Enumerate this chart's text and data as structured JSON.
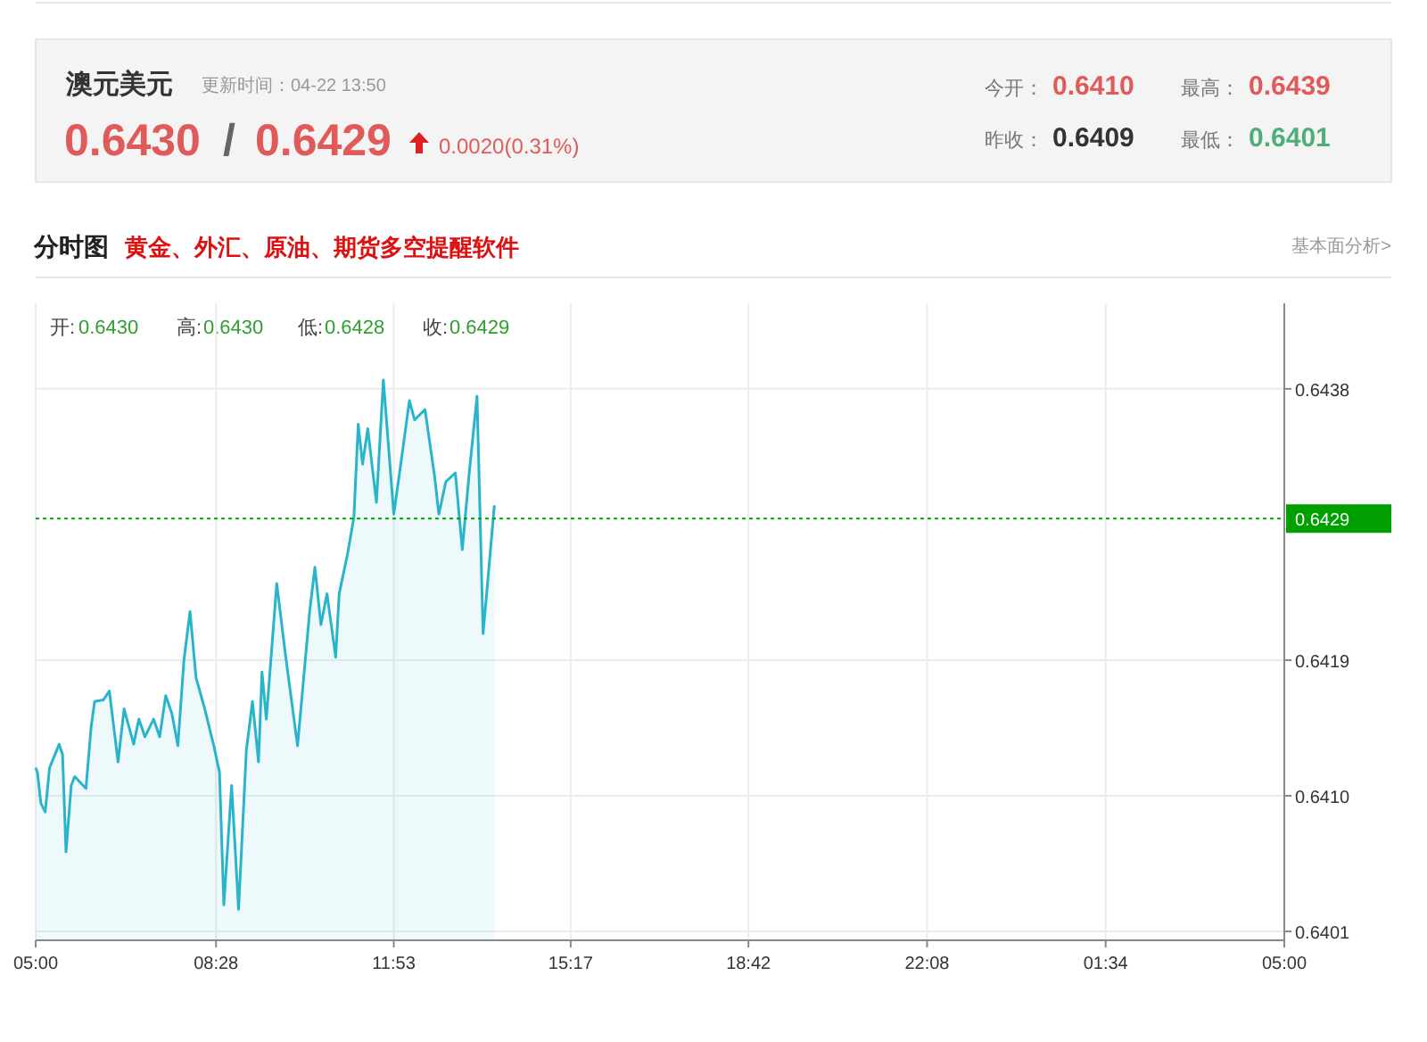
{
  "chart_data": {
    "type": "area",
    "title": "澳元美元",
    "subtitle": "更新时间：04-22 13:50",
    "annotations": [
      "0.6430",
      "/",
      "0.6429",
      "0.0020(0.31%)",
      "今开：",
      "0.6410",
      "最高：",
      "0.6439",
      "昨收：",
      "0.6409",
      "最低：",
      "0.6401",
      "分时图",
      "黄金、外汇、原油、期货多空提醒软件",
      "基本面分析>",
      "开:",
      "0.6430",
      "高:",
      "0.6430",
      "低:",
      "0.6428",
      "收:",
      "0.6429"
    ],
    "x": [
      "--04-22T05:00",
      "--04-22T05:02",
      "--04-22T05:06",
      "--04-22T05:11",
      "--04-22T05:16",
      "--04-22T05:23",
      "--04-22T05:27",
      "--04-22T05:31",
      "--04-22T05:35",
      "--04-22T05:41",
      "--04-22T05:45",
      "--04-22T05:58",
      "--04-22T06:04",
      "--04-22T06:08",
      "--04-22T06:18",
      "--04-22T06:25",
      "--04-22T06:35",
      "--04-22T06:42",
      "--04-22T06:53",
      "--04-22T06:59",
      "--04-22T07:06",
      "--04-22T07:16",
      "--04-22T07:23",
      "--04-22T07:30",
      "--04-22T07:37",
      "--04-22T07:44",
      "--04-22T07:51",
      "--04-22T07:58",
      "--04-22T08:05",
      "--04-22T08:15",
      "--04-22T08:25",
      "--04-22T08:32",
      "--04-22T08:37",
      "--04-22T08:46",
      "--04-22T08:54",
      "--04-22T09:03",
      "--04-22T09:10",
      "--04-22T09:17",
      "--04-22T09:21",
      "--04-22T09:26",
      "--04-22T09:38",
      "--04-22T09:48",
      "--04-22T10:02",
      "--04-22T10:16",
      "--04-22T10:22",
      "--04-22T10:29",
      "--04-22T10:36",
      "--04-22T10:46",
      "--04-22T10:50",
      "--04-22T11:00",
      "--04-22T11:07",
      "--04-22T11:12",
      "--04-22T11:17",
      "--04-22T11:23",
      "--04-22T11:33",
      "--04-22T11:41",
      "--04-22T11:53",
      "--04-22T12:02",
      "--04-22T12:11",
      "--04-22T12:17",
      "--04-22T12:29",
      "--04-22T12:40",
      "--04-22T12:45",
      "--04-22T12:53",
      "--04-22T13:04",
      "--04-22T13:12",
      "--04-22T13:20",
      "--04-22T13:29",
      "--04-22T13:36",
      "--04-22T13:41",
      "--04-22T13:49"
    ],
    "series": [
      {
        "color": "#2ab4cb",
        "values": [
          0.64121,
          0.64118,
          0.64097,
          0.64091,
          0.64121,
          0.64131,
          0.64137,
          0.6413,
          0.64064,
          0.64109,
          0.64115,
          0.64107,
          0.64149,
          0.64166,
          0.64167,
          0.64173,
          0.64125,
          0.64161,
          0.64137,
          0.64154,
          0.64142,
          0.64154,
          0.64142,
          0.6417,
          0.64158,
          0.64136,
          0.64194,
          0.64227,
          0.64182,
          0.64161,
          0.64137,
          0.64118,
          0.64028,
          0.64109,
          0.64025,
          0.64133,
          0.64166,
          0.64125,
          0.64186,
          0.64154,
          0.64246,
          0.64198,
          0.64136,
          0.64227,
          0.64257,
          0.64218,
          0.64239,
          0.64196,
          0.64239,
          0.64267,
          0.64291,
          0.64354,
          0.64327,
          0.64351,
          0.64301,
          0.64384,
          0.64293,
          0.64331,
          0.6437,
          0.64357,
          0.64364,
          0.64319,
          0.64293,
          0.64315,
          0.64321,
          0.64269,
          0.64321,
          0.64373,
          0.64212,
          0.64245,
          0.64299
        ]
      }
    ],
    "xlim": [
      "--04-22T05:00",
      "--04-23T05:00"
    ],
    "xticks": [
      {
        "value": "--04-22T05:00",
        "label": "05:00"
      },
      {
        "value": "--04-22T08:28",
        "label": "08:28"
      },
      {
        "value": "--04-22T11:53",
        "label": "11:53"
      },
      {
        "value": "--04-22T15:17",
        "label": "15:17"
      },
      {
        "value": "--04-22T18:42",
        "label": "18:42"
      },
      {
        "value": "--04-22T22:08",
        "label": "22:08"
      },
      {
        "value": "--04-23T01:34",
        "label": "01:34"
      },
      {
        "value": "--04-23T05:00",
        "label": "05:00"
      }
    ],
    "ylim": [
      0.64004,
      0.64436
    ],
    "yticks": [
      {
        "value": 0.6401,
        "label": "0.6401"
      },
      {
        "value": 0.64102,
        "label": "0.6410"
      },
      {
        "value": 0.64194,
        "label": "0.6419"
      },
      {
        "value": 0.64378,
        "label": "0.6438"
      }
    ],
    "ref_lines": [
      {
        "axis": "y",
        "value": 0.6429,
        "label": "0.6429",
        "color": "#00a000",
        "line_style": "dotted"
      }
    ],
    "grid": true,
    "marker": "none",
    "line_style": "solid"
  }
}
